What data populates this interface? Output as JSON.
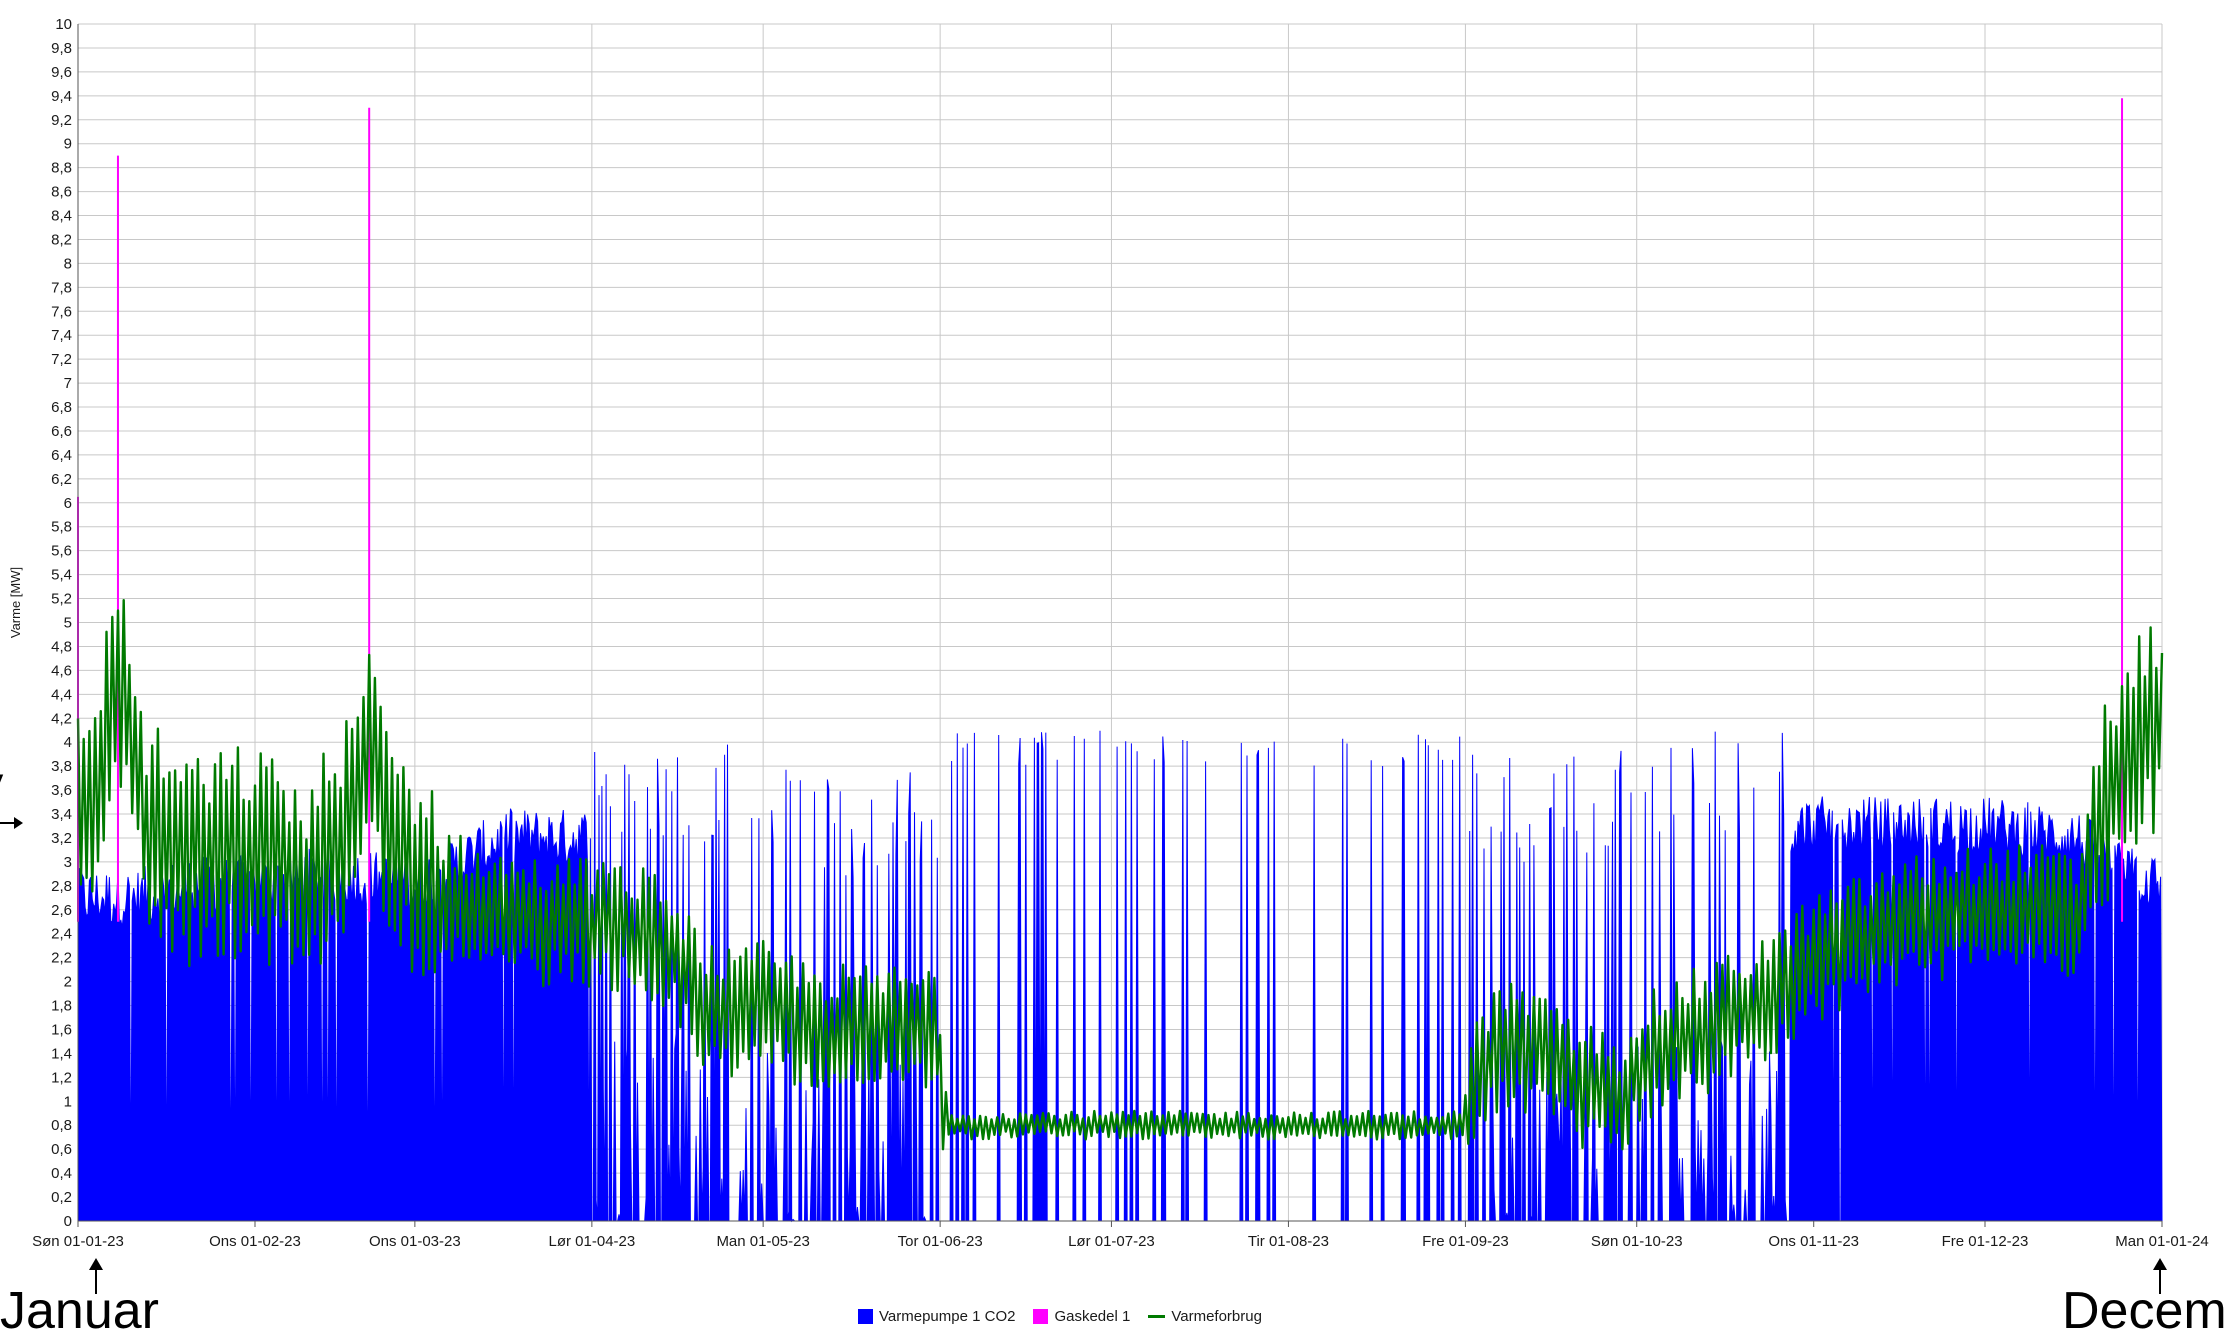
{
  "chart_data": {
    "type": "area",
    "title": "",
    "ylabel": "Varme [MW]",
    "xlabel": "",
    "ylim": [
      0,
      10
    ],
    "yticks": [
      "0",
      "0,2",
      "0,4",
      "0,6",
      "0,8",
      "1",
      "1,2",
      "1,4",
      "1,6",
      "1,8",
      "2",
      "2,2",
      "2,4",
      "2,6",
      "2,8",
      "3",
      "3,2",
      "3,4",
      "3,6",
      "3,8",
      "4",
      "4,2",
      "4,4",
      "4,6",
      "4,8",
      "5",
      "5,2",
      "5,4",
      "5,6",
      "5,8",
      "6",
      "6,2",
      "6,4",
      "6,6",
      "6,8",
      "7",
      "7,2",
      "7,4",
      "7,6",
      "7,8",
      "8",
      "8,2",
      "8,4",
      "8,6",
      "8,8",
      "9",
      "9,2",
      "9,4",
      "9,6",
      "9,8",
      "10"
    ],
    "xticks": [
      {
        "day": 0,
        "label": "Søn 01-01-23"
      },
      {
        "day": 31,
        "label": "Ons 01-02-23"
      },
      {
        "day": 59,
        "label": "Ons 01-03-23"
      },
      {
        "day": 90,
        "label": "Lør 01-04-23"
      },
      {
        "day": 120,
        "label": "Man 01-05-23"
      },
      {
        "day": 151,
        "label": "Tor 01-06-23"
      },
      {
        "day": 181,
        "label": "Lør 01-07-23"
      },
      {
        "day": 212,
        "label": "Tir 01-08-23"
      },
      {
        "day": 243,
        "label": "Fre 01-09-23"
      },
      {
        "day": 273,
        "label": "Søn 01-10-23"
      },
      {
        "day": 304,
        "label": "Ons 01-11-23"
      },
      {
        "day": 334,
        "label": "Fre 01-12-23"
      },
      {
        "day": 365,
        "label": "Man 01-01-24"
      }
    ],
    "grid": true,
    "legend_position": "bottom",
    "series": [
      {
        "name": "Varmepumpe 1 CO2",
        "color": "#0000ff",
        "kind": "area",
        "x_days": [
          0,
          10,
          20,
          31,
          45,
          59,
          75,
          90,
          105,
          120,
          135,
          151,
          165,
          181,
          196,
          212,
          228,
          243,
          258,
          273,
          288,
          304,
          320,
          334,
          350,
          358,
          365
        ],
        "values": [
          2.7,
          2.7,
          2.8,
          2.8,
          2.9,
          2.8,
          3.2,
          3.2,
          3.2,
          3.0,
          2.8,
          3.0,
          2.8,
          3.0,
          3.0,
          3.0,
          3.0,
          3.0,
          3.0,
          3.1,
          3.2,
          3.3,
          3.3,
          3.3,
          3.2,
          2.9,
          2.8
        ]
      },
      {
        "name": "Gaskedel 1",
        "color": "#ff00ff",
        "kind": "spikes",
        "x_days": [
          0,
          7,
          51,
          358
        ],
        "values": [
          6.05,
          8.9,
          9.3,
          9.38
        ]
      },
      {
        "name": "Varmeforbrug",
        "color": "#007a00",
        "kind": "line",
        "x_days": [
          0,
          3,
          7,
          12,
          20,
          31,
          40,
          48,
          51,
          55,
          59,
          70,
          80,
          90,
          100,
          105,
          110,
          115,
          120,
          130,
          140,
          150,
          151,
          152,
          160,
          181,
          200,
          220,
          243,
          245,
          250,
          255,
          260,
          265,
          270,
          273,
          280,
          290,
          300,
          304,
          310,
          320,
          334,
          345,
          350,
          355,
          360,
          365
        ],
        "values": [
          3.4,
          3.6,
          4.6,
          3.3,
          3.0,
          3.1,
          2.8,
          3.4,
          3.9,
          3.2,
          2.9,
          2.6,
          2.5,
          2.5,
          2.4,
          2.2,
          1.8,
          1.7,
          1.8,
          1.6,
          1.6,
          1.6,
          1.3,
          0.8,
          0.8,
          0.8,
          0.8,
          0.8,
          0.8,
          1.2,
          1.5,
          1.4,
          1.2,
          1.1,
          1.0,
          1.3,
          1.5,
          1.7,
          2.0,
          2.2,
          2.3,
          2.5,
          2.6,
          2.6,
          2.5,
          3.5,
          4.0,
          4.2
        ]
      }
    ]
  },
  "annotations": {
    "start_label": "Januar",
    "end_label": "December"
  },
  "legend": [
    {
      "label": "Varmepumpe 1 CO2",
      "color": "#0000ff"
    },
    {
      "label": "Gaskedel 1",
      "color": "#ff00ff"
    },
    {
      "label": "Varmeforbrug",
      "color": "#007a00"
    }
  ]
}
